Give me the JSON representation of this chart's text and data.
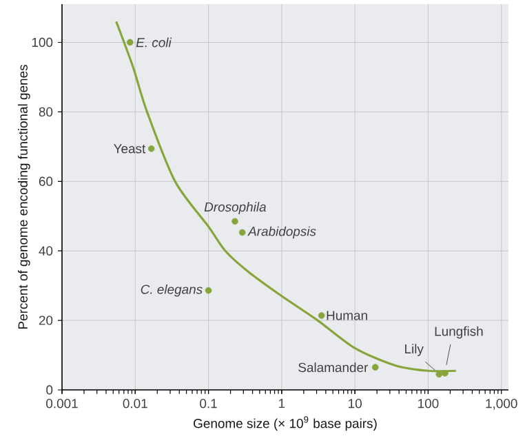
{
  "chart_data": {
    "type": "scatter",
    "xlabel": "Genome size (× 10$^{9}$ base pairs)",
    "ylabel": "Percent of genome encoding functional genes",
    "log": "x",
    "xlim": [
      0.001,
      1250
    ],
    "ylim": [
      0,
      111
    ],
    "xticks": [
      0.001,
      0.01,
      0.1,
      1,
      10,
      100,
      {
        "value": 1000,
        "label": "1,000"
      }
    ],
    "yticks": [
      0,
      20,
      40,
      60,
      80,
      100
    ],
    "grid": true,
    "series": [
      {
        "marker": "circle",
        "color": "#86a53a",
        "x": [
          0.0085,
          0.0166,
          0.23,
          0.29,
          0.1,
          3.5,
          19,
          141,
          170
        ],
        "values": [
          100,
          69.4,
          48.5,
          45.3,
          28.6,
          21.4,
          6.5,
          4.5,
          4.8
        ]
      },
      {
        "type": "line",
        "marker": "none",
        "line_style": "solid",
        "color": "#86a53a",
        "x": [
          0.0055,
          0.0093,
          0.0145,
          0.035,
          0.1,
          0.17,
          0.35,
          1,
          3.1,
          10,
          36,
          100,
          240
        ],
        "values": [
          106,
          93,
          80,
          60,
          47,
          40,
          34,
          27,
          20,
          12,
          7,
          5.5,
          5.5
        ]
      }
    ],
    "annotations": [
      {
        "text": "*E. coli*",
        "x": 0.0085,
        "y": 100
      },
      {
        "text": "Yeast",
        "x": 0.0166,
        "y": 69.4
      },
      {
        "text": "*Drosophila*",
        "x": 0.23,
        "y": 48.5
      },
      {
        "text": "*Arabidopsis*",
        "x": 0.29,
        "y": 45.3
      },
      {
        "text": "*C. elegans*",
        "x": 0.1,
        "y": 28.6
      },
      {
        "text": "Human",
        "x": 3.5,
        "y": 21.4
      },
      {
        "text": "Salamander",
        "x": 19,
        "y": 6.5
      },
      {
        "text": "Lily",
        "x": 141,
        "y": 4.5
      },
      {
        "text": "Lungfish",
        "x": 170,
        "y": 4.8
      }
    ]
  }
}
